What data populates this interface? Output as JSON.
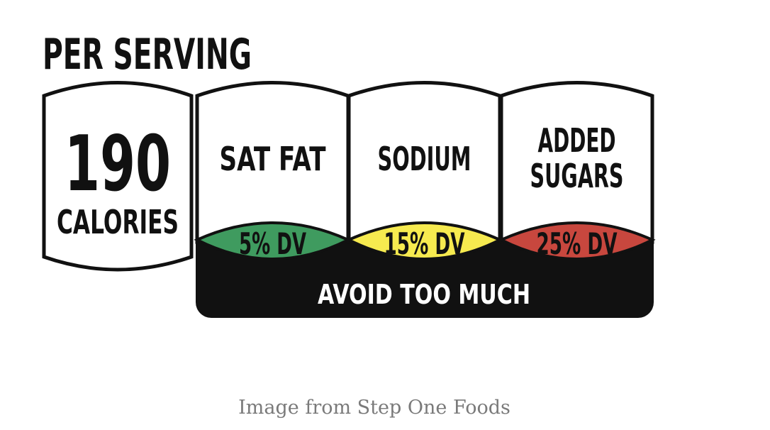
{
  "header": {
    "title": "PER SERVING"
  },
  "calories": {
    "value": "190",
    "label": "CALORIES"
  },
  "nutrients": [
    {
      "name_lines": [
        "SAT FAT"
      ],
      "dv": "5% DV",
      "color": "#3f9b5f"
    },
    {
      "name_lines": [
        "SODIUM"
      ],
      "dv": "15% DV",
      "color": "#f6ea4f"
    },
    {
      "name_lines": [
        "ADDED",
        "SUGARS"
      ],
      "dv": "25% DV",
      "color": "#c8473e"
    }
  ],
  "warning": "AVOID TOO MUCH",
  "caption": "Image from Step One Foods"
}
